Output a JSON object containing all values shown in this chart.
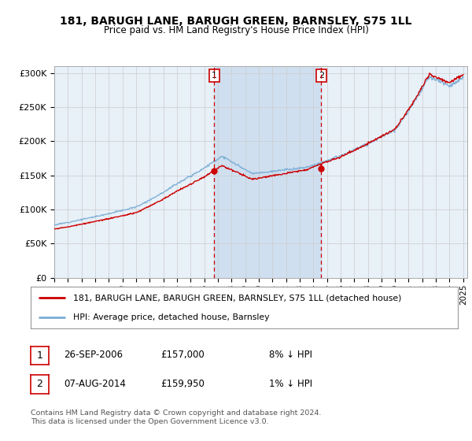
{
  "title": "181, BARUGH LANE, BARUGH GREEN, BARNSLEY, S75 1LL",
  "subtitle": "Price paid vs. HM Land Registry's House Price Index (HPI)",
  "ylim": [
    0,
    310000
  ],
  "yticks": [
    0,
    50000,
    100000,
    150000,
    200000,
    250000,
    300000
  ],
  "ytick_labels": [
    "£0",
    "£50K",
    "£100K",
    "£150K",
    "£200K",
    "£250K",
    "£300K"
  ],
  "background_color": "#ffffff",
  "plot_bg_color": "#e8f0f8",
  "grid_color": "#cccccc",
  "hpi_color": "#7aadd4",
  "price_color": "#cc0000",
  "vline_color": "#cc0000",
  "shade_color": "#cfdff0",
  "transaction1_date": 2006.74,
  "transaction1_price": 157000,
  "transaction2_date": 2014.59,
  "transaction2_price": 159950,
  "legend_label_price": "181, BARUGH LANE, BARUGH GREEN, BARNSLEY, S75 1LL (detached house)",
  "legend_label_hpi": "HPI: Average price, detached house, Barnsley",
  "footer1": "Contains HM Land Registry data © Crown copyright and database right 2024.",
  "footer2": "This data is licensed under the Open Government Licence v3.0.",
  "table_rows": [
    {
      "num": "1",
      "date": "26-SEP-2006",
      "price": "£157,000",
      "hpi": "8% ↓ HPI"
    },
    {
      "num": "2",
      "date": "07-AUG-2014",
      "price": "£159,950",
      "hpi": "1% ↓ HPI"
    }
  ]
}
